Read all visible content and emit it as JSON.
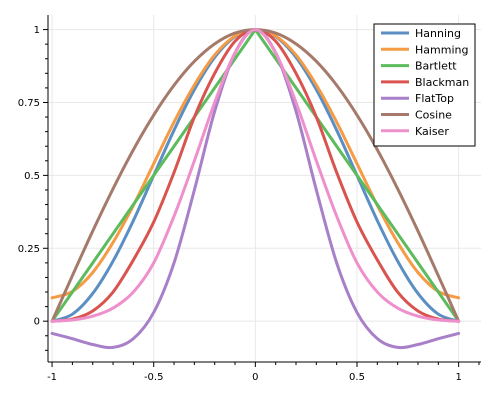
{
  "chart_data": {
    "type": "line",
    "title": "",
    "xlabel": "",
    "ylabel": "",
    "xlim": [
      -1.02,
      1.11
    ],
    "ylim": [
      -0.14,
      1.05
    ],
    "grid": true,
    "legend_position": "top-right",
    "x_ticks": [
      -1,
      -0.5,
      0,
      0.5,
      1
    ],
    "x_tick_labels": [
      "-1",
      "-0.5",
      "0",
      "0.5",
      "1"
    ],
    "y_ticks": [
      0,
      0.25,
      0.5,
      0.75,
      1
    ],
    "y_tick_labels": [
      "0",
      "0.25",
      "0.5",
      "0.75",
      "1"
    ],
    "x": [
      -1,
      -0.9,
      -0.8,
      -0.7,
      -0.6,
      -0.5,
      -0.4,
      -0.3,
      -0.2,
      -0.1,
      0,
      0.1,
      0.2,
      0.3,
      0.4,
      0.5,
      0.6,
      0.7,
      0.8,
      0.9,
      1
    ],
    "series": [
      {
        "name": "Hanning",
        "color": "#5b8fc4",
        "values": [
          0,
          0.024,
          0.095,
          0.206,
          0.345,
          0.5,
          0.655,
          0.794,
          0.905,
          0.976,
          1,
          0.976,
          0.905,
          0.794,
          0.655,
          0.5,
          0.345,
          0.206,
          0.095,
          0.024,
          0
        ]
      },
      {
        "name": "Hamming",
        "color": "#f59b45",
        "values": [
          0.08,
          0.102,
          0.167,
          0.27,
          0.397,
          0.54,
          0.683,
          0.81,
          0.913,
          0.978,
          1,
          0.978,
          0.913,
          0.81,
          0.683,
          0.54,
          0.397,
          0.27,
          0.167,
          0.102,
          0.08
        ]
      },
      {
        "name": "Bartlett",
        "color": "#5cbb5c",
        "values": [
          0,
          0.1,
          0.2,
          0.3,
          0.4,
          0.5,
          0.6,
          0.7,
          0.8,
          0.9,
          1,
          0.9,
          0.8,
          0.7,
          0.6,
          0.5,
          0.4,
          0.3,
          0.2,
          0.1,
          0
        ]
      },
      {
        "name": "Blackman",
        "color": "#d9534f",
        "values": [
          0,
          0.007,
          0.035,
          0.1,
          0.21,
          0.34,
          0.51,
          0.7,
          0.85,
          0.96,
          1,
          0.96,
          0.85,
          0.7,
          0.51,
          0.34,
          0.21,
          0.1,
          0.035,
          0.007,
          0
        ]
      },
      {
        "name": "FlatTop",
        "color": "#a87fc9",
        "values": [
          -0.042,
          -0.06,
          -0.08,
          -0.09,
          -0.06,
          0.03,
          0.2,
          0.45,
          0.72,
          0.92,
          1,
          0.92,
          0.72,
          0.45,
          0.2,
          0.03,
          -0.06,
          -0.09,
          -0.08,
          -0.06,
          -0.042
        ]
      },
      {
        "name": "Cosine",
        "color": "#a57a6b",
        "values": [
          0,
          0.156,
          0.309,
          0.454,
          0.588,
          0.707,
          0.809,
          0.891,
          0.951,
          0.988,
          1,
          0.988,
          0.951,
          0.891,
          0.809,
          0.707,
          0.588,
          0.454,
          0.309,
          0.156,
          0
        ]
      },
      {
        "name": "Kaiser",
        "color": "#ee90cc",
        "values": [
          0,
          0.004,
          0.017,
          0.045,
          0.1,
          0.2,
          0.36,
          0.55,
          0.75,
          0.92,
          1,
          0.92,
          0.75,
          0.55,
          0.36,
          0.2,
          0.1,
          0.045,
          0.017,
          0.004,
          0
        ]
      }
    ]
  }
}
